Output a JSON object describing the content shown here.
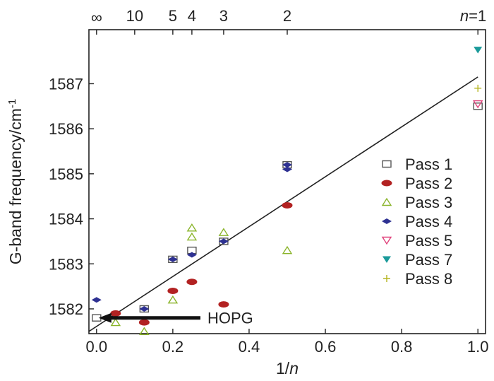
{
  "chart_data": {
    "type": "scatter",
    "xlabel": "1/n",
    "ylabel": "G-band frequency/cm-1",
    "xlim": [
      -0.02,
      1.02
    ],
    "ylim": [
      1581.45,
      1588.2
    ],
    "x_ticks": [
      0.0,
      0.2,
      0.4,
      0.6,
      0.8,
      1.0
    ],
    "x_tick_labels": [
      "0.0",
      "0.2",
      "0.4",
      "0.6",
      "0.8",
      "1.0"
    ],
    "y_ticks": [
      1582,
      1583,
      1584,
      1585,
      1586,
      1587
    ],
    "y_tick_labels": [
      "1582",
      "1583",
      "1584",
      "1585",
      "1586",
      "1587"
    ],
    "top_axis": {
      "ticks": [
        0.0,
        0.1,
        0.2,
        0.25,
        0.3333,
        0.5,
        1.0
      ],
      "labels": [
        "∞",
        "10",
        "5",
        "4",
        "3",
        "2",
        "n=1"
      ]
    },
    "grid": false,
    "legend_position": "right",
    "fit_line": {
      "x": [
        -0.02,
        1.0
      ],
      "y": [
        1581.5,
        1587.15
      ]
    },
    "annotation": {
      "text": "HOPG",
      "points_to": {
        "x": 0.0,
        "y": 1581.8
      }
    },
    "series": [
      {
        "name": "Pass 1",
        "marker": "square-open",
        "color": "#555555",
        "points": [
          [
            0.0,
            1581.8
          ],
          [
            0.125,
            1582.0
          ],
          [
            0.2,
            1583.1
          ],
          [
            0.25,
            1583.3
          ],
          [
            0.3333,
            1583.5
          ],
          [
            0.5,
            1585.2
          ],
          [
            1.0,
            1586.5
          ]
        ]
      },
      {
        "name": "Pass 2",
        "marker": "ellipse-filled",
        "color": "#b22222",
        "points": [
          [
            0.05,
            1581.9
          ],
          [
            0.125,
            1581.7
          ],
          [
            0.2,
            1582.4
          ],
          [
            0.25,
            1582.6
          ],
          [
            0.3333,
            1582.1
          ],
          [
            0.5,
            1584.3
          ]
        ]
      },
      {
        "name": "Pass 3",
        "marker": "triangle-up-open",
        "color": "#8ab42a",
        "points": [
          [
            0.05,
            1581.7
          ],
          [
            0.125,
            1581.5
          ],
          [
            0.2,
            1582.2
          ],
          [
            0.25,
            1583.6
          ],
          [
            0.25,
            1583.8
          ],
          [
            0.3333,
            1583.7
          ],
          [
            0.5,
            1583.3
          ]
        ]
      },
      {
        "name": "Pass 4",
        "marker": "diamond-filled",
        "color": "#2e3192",
        "points": [
          [
            0.0,
            1582.2
          ],
          [
            0.125,
            1582.0
          ],
          [
            0.2,
            1583.1
          ],
          [
            0.25,
            1583.2
          ],
          [
            0.3333,
            1583.5
          ],
          [
            0.5,
            1585.1
          ],
          [
            0.5,
            1585.2
          ]
        ]
      },
      {
        "name": "Pass 5",
        "marker": "triangle-down-open",
        "color": "#e0407a",
        "points": [
          [
            1.0,
            1586.55
          ]
        ]
      },
      {
        "name": "Pass 7",
        "marker": "triangle-down-filled",
        "color": "#1a9a9a",
        "points": [
          [
            1.0,
            1587.75
          ]
        ]
      },
      {
        "name": "Pass 8",
        "marker": "plus",
        "color": "#b5b520",
        "points": [
          [
            1.0,
            1586.9
          ]
        ]
      }
    ]
  }
}
